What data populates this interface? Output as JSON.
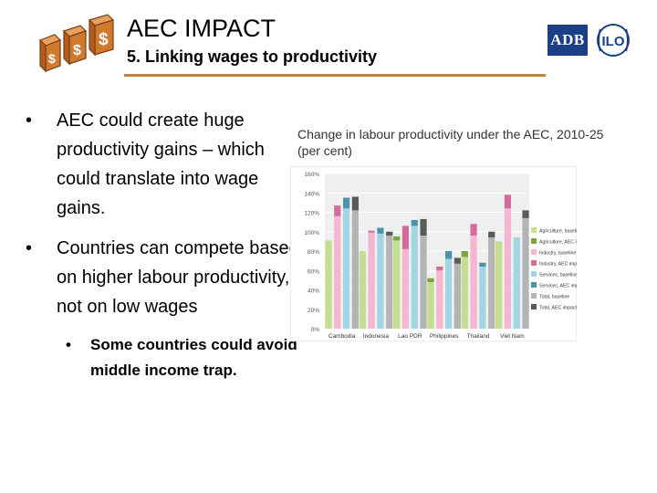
{
  "header": {
    "title": "AEC IMPACT",
    "subtitle": "5. Linking wages to productivity",
    "logo_adb": "ADB",
    "logo_ilo": "ILO"
  },
  "bullets": [
    {
      "text": "AEC could create huge productivity gains – which could translate into wage gains."
    },
    {
      "text": "Countries can compete based on higher labour productivity, not on low wages"
    }
  ],
  "sub_bullets": [
    {
      "text": "Some countries could avoid middle income trap."
    }
  ],
  "chart_caption": "Change in labour productivity under the AEC, 2010-25 (per cent)",
  "chart_data": {
    "type": "bar",
    "categories": [
      "Cambodia",
      "Indonesia",
      "Lao PDR",
      "Philippines",
      "Thailand",
      "Viet Nam"
    ],
    "ylim": [
      0,
      160
    ],
    "yticks": [
      "0%",
      "20%",
      "40%",
      "60%",
      "80%",
      "100%",
      "120%",
      "140%",
      "160%"
    ],
    "ytick_values": [
      0,
      20,
      40,
      60,
      80,
      100,
      120,
      140,
      160
    ],
    "grid": true,
    "legend_position": "right",
    "series": [
      {
        "name": "Agriculture, baseline",
        "color": "#c5dd8d",
        "values": [
          91,
          80,
          91,
          48,
          74,
          90
        ]
      },
      {
        "name": "Agriculture, AEC impact",
        "color": "#7ea23a",
        "values": [
          0,
          0,
          4,
          4,
          6,
          0
        ]
      },
      {
        "name": "Industry, baseline",
        "color": "#f4b6d0",
        "values": [
          116,
          99,
          82,
          60,
          96,
          124
        ]
      },
      {
        "name": "Industry, AEC impact",
        "color": "#d66ba0",
        "values": [
          11,
          2,
          24,
          4,
          12,
          14
        ]
      },
      {
        "name": "Services, baseline",
        "color": "#a3d4e4",
        "values": [
          124,
          98,
          106,
          72,
          64,
          94
        ]
      },
      {
        "name": "Services, AEC impact",
        "color": "#4a93aa",
        "values": [
          11,
          6,
          6,
          8,
          4,
          0
        ]
      },
      {
        "name": "Total, baseline",
        "color": "#b4b4b4",
        "values": [
          122,
          96,
          96,
          67,
          94,
          114
        ]
      },
      {
        "name": "Total, AEC impact",
        "color": "#5a5a5a",
        "values": [
          14,
          4,
          17,
          6,
          6,
          8
        ]
      }
    ]
  }
}
